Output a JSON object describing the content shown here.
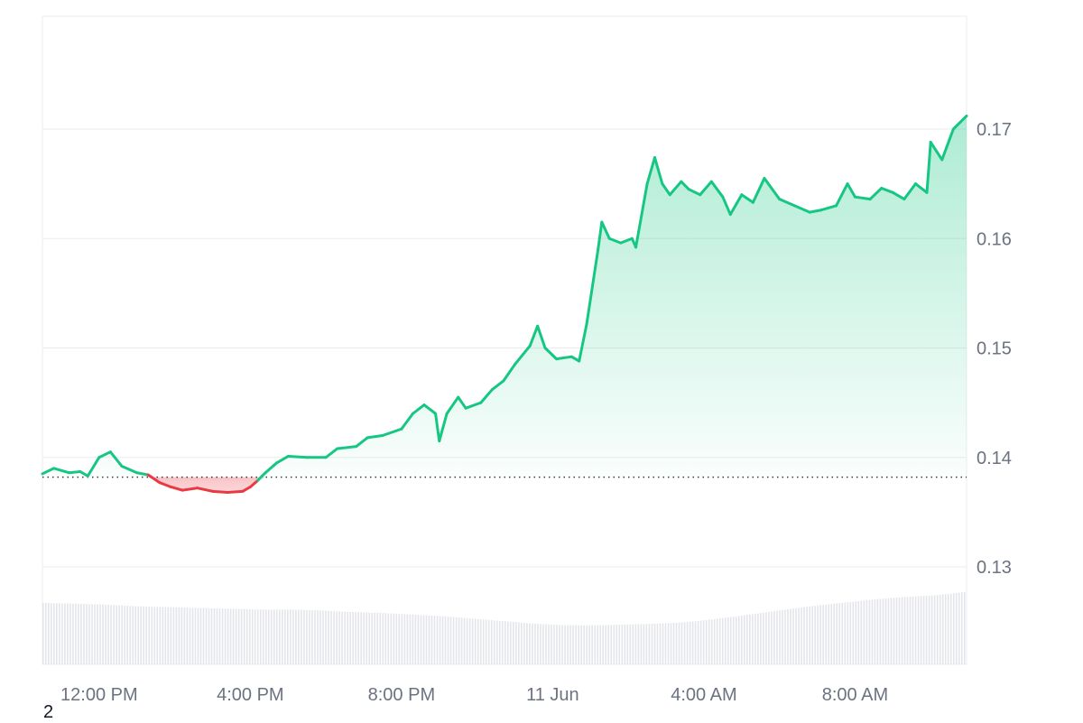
{
  "chart_data": {
    "type": "area",
    "x_labels": [
      "12:00 PM",
      "4:00 PM",
      "8:00 PM",
      "11 Jun",
      "4:00 AM",
      "8:00 AM"
    ],
    "y_ticks": [
      0.13,
      0.14,
      0.15,
      0.16,
      0.17
    ],
    "y_tick_labels": [
      "0.13",
      "0.14",
      "0.15",
      "0.16",
      "0.17"
    ],
    "ylim": [
      0.12,
      0.18
    ],
    "x_range_hours": [
      10.5,
      34.95
    ],
    "baseline": 0.1382,
    "grid": true,
    "colors": {
      "up": "#16c784",
      "down": "#ea3943",
      "grid": "#e9ebef",
      "volume": "#e3e5ea",
      "baseline": "#3a3a3a"
    },
    "series": [
      {
        "points": [
          [
            10.5,
            0.1385
          ],
          [
            10.8,
            0.139
          ],
          [
            11.2,
            0.1386
          ],
          [
            11.5,
            0.1387
          ],
          [
            11.7,
            0.1383
          ],
          [
            12.0,
            0.14
          ],
          [
            12.3,
            0.1405
          ],
          [
            12.6,
            0.1392
          ],
          [
            13.0,
            0.1386
          ],
          [
            13.3,
            0.1384
          ],
          [
            13.6,
            0.1377
          ],
          [
            13.9,
            0.1373
          ],
          [
            14.2,
            0.137
          ],
          [
            14.6,
            0.1372
          ],
          [
            15.0,
            0.1369
          ],
          [
            15.4,
            0.1368
          ],
          [
            15.8,
            0.1369
          ],
          [
            16.0,
            0.1373
          ],
          [
            16.2,
            0.1379
          ],
          [
            16.4,
            0.1386
          ],
          [
            16.7,
            0.1395
          ],
          [
            17.0,
            0.1401
          ],
          [
            17.5,
            0.14
          ],
          [
            18.0,
            0.14
          ],
          [
            18.3,
            0.1408
          ],
          [
            18.8,
            0.141
          ],
          [
            19.1,
            0.1418
          ],
          [
            19.5,
            0.142
          ],
          [
            20.0,
            0.1426
          ],
          [
            20.3,
            0.144
          ],
          [
            20.6,
            0.1448
          ],
          [
            20.9,
            0.144
          ],
          [
            21.0,
            0.1415
          ],
          [
            21.2,
            0.144
          ],
          [
            21.5,
            0.1455
          ],
          [
            21.7,
            0.1445
          ],
          [
            22.1,
            0.145
          ],
          [
            22.4,
            0.1462
          ],
          [
            22.7,
            0.147
          ],
          [
            23.0,
            0.1485
          ],
          [
            23.4,
            0.1502
          ],
          [
            23.6,
            0.152
          ],
          [
            23.8,
            0.15
          ],
          [
            24.1,
            0.149
          ],
          [
            24.5,
            0.1492
          ],
          [
            24.7,
            0.1488
          ],
          [
            24.9,
            0.1522
          ],
          [
            25.2,
            0.159
          ],
          [
            25.3,
            0.1615
          ],
          [
            25.5,
            0.16
          ],
          [
            25.8,
            0.1596
          ],
          [
            26.1,
            0.16
          ],
          [
            26.2,
            0.1592
          ],
          [
            26.5,
            0.165
          ],
          [
            26.7,
            0.1674
          ],
          [
            26.9,
            0.165
          ],
          [
            27.1,
            0.164
          ],
          [
            27.4,
            0.1652
          ],
          [
            27.6,
            0.1645
          ],
          [
            27.9,
            0.164
          ],
          [
            28.2,
            0.1652
          ],
          [
            28.5,
            0.1638
          ],
          [
            28.7,
            0.1622
          ],
          [
            29.0,
            0.164
          ],
          [
            29.3,
            0.1633
          ],
          [
            29.6,
            0.1655
          ],
          [
            30.0,
            0.1636
          ],
          [
            30.4,
            0.163
          ],
          [
            30.8,
            0.1624
          ],
          [
            31.1,
            0.1626
          ],
          [
            31.5,
            0.163
          ],
          [
            31.8,
            0.165
          ],
          [
            32.0,
            0.1638
          ],
          [
            32.4,
            0.1636
          ],
          [
            32.7,
            0.1646
          ],
          [
            33.0,
            0.1642
          ],
          [
            33.3,
            0.1636
          ],
          [
            33.6,
            0.165
          ],
          [
            33.9,
            0.1642
          ],
          [
            34.0,
            0.1688
          ],
          [
            34.3,
            0.1672
          ],
          [
            34.6,
            0.17
          ],
          [
            34.95,
            0.1712
          ]
        ]
      }
    ],
    "volume": [
      0.74,
      0.73,
      0.72,
      0.7,
      0.69,
      0.68,
      0.67,
      0.66,
      0.66,
      0.65,
      0.63,
      0.62,
      0.6,
      0.58,
      0.55,
      0.52,
      0.49,
      0.47,
      0.47,
      0.48,
      0.49,
      0.51,
      0.55,
      0.6,
      0.65,
      0.7,
      0.74,
      0.78,
      0.81,
      0.83,
      0.87
    ]
  },
  "footnote": "2"
}
